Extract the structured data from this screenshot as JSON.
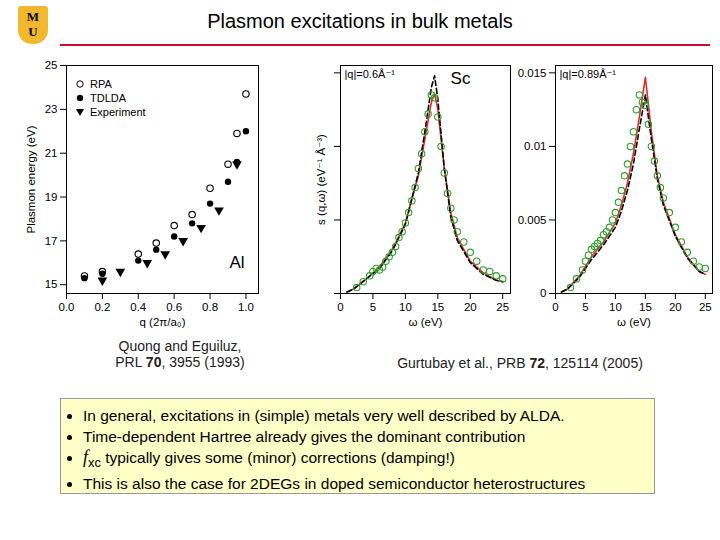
{
  "slide": {
    "logo": [
      "M",
      "U"
    ],
    "title": "Plasmon excitations in bulk metals",
    "captions": [
      {
        "lines": [
          [
            {
              "t": "Quong and Eguiluz,"
            }
          ],
          [
            {
              "t": "PRL "
            },
            {
              "t": "70",
              "style": "bold"
            },
            {
              "t": ", 3955 (1993)"
            }
          ]
        ]
      },
      {
        "lines": [
          [
            {
              "t": "Gurtubay et al., PRB "
            },
            {
              "t": "72",
              "style": "bold"
            },
            {
              "t": ", 125114 (2005)"
            }
          ]
        ]
      }
    ],
    "bullets": [
      [
        {
          "t": "In general, excitations in (simple) metals very well described by ALDA."
        }
      ],
      [
        {
          "t": "Time-dependent Hartree already gives the dominant contribution"
        }
      ],
      [
        {
          "t": "f",
          "style": "italic"
        },
        {
          "t": "xc",
          "style": "sub"
        },
        {
          "t": " typically gives some (minor) corrections (damping!)"
        }
      ],
      [
        {
          "t": "This is also the case for 2DEGs in doped semiconductor heterostructures"
        }
      ]
    ]
  },
  "chart_data": [
    {
      "type": "scatter",
      "x_label": "q (2π/a₀)",
      "y_label": "Plasmon energy (eV)",
      "xlim": [
        0,
        1.07
      ],
      "ylim": [
        14.6,
        25
      ],
      "xticks": [
        {
          "value": 0,
          "label": "0.0"
        },
        0.2,
        0.4,
        0.6,
        0.8,
        {
          "value": 1,
          "label": "1.0"
        }
      ],
      "yticks": [
        15,
        17,
        19,
        21,
        23,
        25
      ],
      "grid": false,
      "legend": "upper left",
      "annotations": [
        {
          "text": "Al",
          "x": 0.95,
          "y": 16.0
        }
      ],
      "series": [
        {
          "name": "RPA",
          "color": "#000000",
          "marker": "open_circle",
          "x": [
            0.1,
            0.2,
            0.4,
            0.5,
            0.6,
            0.7,
            0.8,
            0.9,
            0.95,
            1.0
          ],
          "values": [
            15.4,
            15.6,
            16.4,
            16.9,
            17.7,
            18.2,
            19.4,
            20.5,
            21.9,
            23.7
          ]
        },
        {
          "name": "TDLDA",
          "color": "#000000",
          "marker": "circle",
          "x": [
            0.1,
            0.2,
            0.4,
            0.5,
            0.6,
            0.7,
            0.8,
            0.9,
            0.95,
            1.0
          ],
          "values": [
            15.3,
            15.5,
            16.1,
            16.6,
            17.2,
            17.8,
            18.7,
            19.7,
            20.6,
            22.0
          ]
        },
        {
          "name": "Experiment",
          "color": "#000000",
          "marker": "triangle_down",
          "x": [
            0.2,
            0.3,
            0.45,
            0.55,
            0.65,
            0.75,
            0.85,
            0.95
          ],
          "values": [
            15.2,
            15.6,
            16.0,
            16.4,
            17.0,
            17.6,
            18.4,
            20.5
          ]
        }
      ]
    },
    {
      "type": "line",
      "title": "|q|=0.6Å⁻¹",
      "x_label": "ω (eV)",
      "y_label": "s (q,ω) (eV⁻¹ Å⁻³)",
      "xlim": [
        0,
        26.2
      ],
      "ylim": [
        0,
        0.0155
      ],
      "xticks": [
        0,
        5,
        10,
        15,
        20,
        25
      ],
      "yticks": [
        0,
        0.005,
        0.01,
        0.015
      ],
      "tick_labels": "x",
      "grid": false,
      "annotations": [
        {
          "text": "Sc",
          "x": 18.5,
          "y": 0.0146
        }
      ],
      "series": [
        {
          "type": "line",
          "color": "#e0302a",
          "line_style": "solid",
          "x": [
            1,
            2,
            4,
            6,
            8,
            10,
            12,
            13,
            14,
            14.5,
            15,
            16,
            17,
            18,
            20,
            22,
            24,
            25
          ],
          "values": [
            0.0001,
            0.0003,
            0.001,
            0.0018,
            0.003,
            0.0048,
            0.008,
            0.0105,
            0.013,
            0.0136,
            0.0125,
            0.0085,
            0.0055,
            0.0038,
            0.0022,
            0.0014,
            0.0009,
            0.0008
          ]
        },
        {
          "type": "line",
          "color": "#000000",
          "line_style": "dashed",
          "x": [
            1,
            2,
            4,
            6,
            8,
            10,
            12,
            13,
            14,
            14.5,
            15,
            16,
            17,
            18,
            20,
            22,
            24,
            25
          ],
          "values": [
            0.0001,
            0.0003,
            0.001,
            0.0017,
            0.0029,
            0.0047,
            0.0082,
            0.011,
            0.014,
            0.0148,
            0.0132,
            0.0085,
            0.0052,
            0.0036,
            0.0021,
            0.0013,
            0.0009,
            0.0008
          ]
        },
        {
          "type": "scatter",
          "color": "#2ca02c",
          "marker": "open_circle",
          "x": [
            2.5,
            3.5,
            4.5,
            5,
            5.5,
            6,
            6.5,
            7,
            7.5,
            8,
            8.5,
            9,
            9.5,
            10,
            10.5,
            11,
            11.5,
            12,
            12.5,
            13,
            13.5,
            14,
            14.5,
            15,
            15.5,
            16,
            16.5,
            17,
            17.5,
            18,
            19,
            20,
            21,
            22,
            23,
            24,
            25
          ],
          "values": [
            0.0004,
            0.0008,
            0.0012,
            0.0015,
            0.0017,
            0.0016,
            0.0018,
            0.0022,
            0.0025,
            0.0028,
            0.0032,
            0.0038,
            0.0042,
            0.0048,
            0.0055,
            0.0063,
            0.0072,
            0.0085,
            0.0095,
            0.011,
            0.0122,
            0.0135,
            0.0133,
            0.012,
            0.01,
            0.0082,
            0.0068,
            0.0058,
            0.005,
            0.0042,
            0.0035,
            0.0028,
            0.0022,
            0.0016,
            0.0015,
            0.0012,
            0.001
          ]
        }
      ]
    },
    {
      "type": "line",
      "title": "|q|=0.89Å⁻¹",
      "x_label": "ω (eV)",
      "xlim": [
        0,
        26.2
      ],
      "ylim": [
        0,
        0.0155
      ],
      "xticks": [
        0,
        5,
        10,
        15,
        20,
        25
      ],
      "yticks": [
        0,
        0.005,
        0.01,
        0.015
      ],
      "grid": false,
      "series": [
        {
          "type": "line",
          "color": "#e0302a",
          "line_style": "solid",
          "x": [
            1,
            2,
            4,
            6,
            8,
            10,
            11,
            12,
            13,
            14,
            15,
            16,
            17,
            18,
            20,
            22,
            24,
            25
          ],
          "values": [
            0.0001,
            0.0003,
            0.0012,
            0.0025,
            0.0035,
            0.0048,
            0.006,
            0.0075,
            0.0095,
            0.012,
            0.0147,
            0.011,
            0.008,
            0.0062,
            0.004,
            0.0025,
            0.0015,
            0.0013
          ]
        },
        {
          "type": "line",
          "color": "#000000",
          "line_style": "dashed",
          "x": [
            1,
            2,
            4,
            6,
            8,
            10,
            11,
            12,
            13,
            14,
            15,
            16,
            17,
            18,
            20,
            22,
            24,
            25
          ],
          "values": [
            0.0001,
            0.0003,
            0.0011,
            0.0023,
            0.0033,
            0.0045,
            0.0056,
            0.007,
            0.0088,
            0.0112,
            0.0135,
            0.0105,
            0.0078,
            0.006,
            0.0039,
            0.0024,
            0.0015,
            0.0013
          ]
        },
        {
          "type": "scatter",
          "color": "#2ca02c",
          "marker": "open_circle",
          "x": [
            2.5,
            3.5,
            4.5,
            5,
            5.5,
            6,
            6.5,
            7,
            7.5,
            8,
            8.5,
            9,
            9.5,
            10,
            10.5,
            11,
            11.5,
            12,
            12.5,
            13,
            13.5,
            14,
            14.5,
            15,
            15.5,
            16,
            16.5,
            17,
            17.5,
            18,
            19,
            20,
            21,
            22,
            23,
            24,
            25
          ],
          "values": [
            0.0004,
            0.001,
            0.0016,
            0.0022,
            0.0026,
            0.003,
            0.0032,
            0.0034,
            0.0036,
            0.004,
            0.0042,
            0.0045,
            0.005,
            0.0055,
            0.0062,
            0.007,
            0.008,
            0.0088,
            0.01,
            0.011,
            0.0125,
            0.0135,
            0.013,
            0.0128,
            0.0115,
            0.01,
            0.009,
            0.008,
            0.0072,
            0.0065,
            0.0055,
            0.0045,
            0.0035,
            0.0028,
            0.0022,
            0.0018,
            0.0017
          ]
        }
      ]
    }
  ]
}
